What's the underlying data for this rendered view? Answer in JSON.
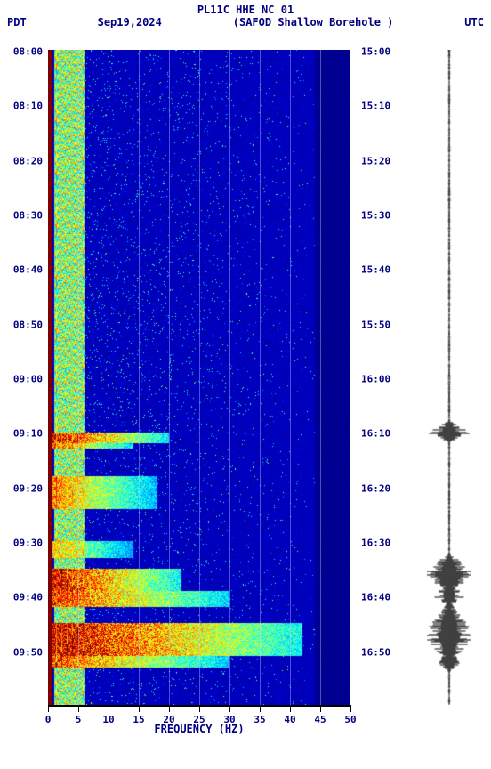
{
  "header": {
    "title": "PL11C HHE NC 01",
    "left_tz": "PDT",
    "date": "Sep19,2024",
    "station": "(SAFOD Shallow Borehole )",
    "right_tz": "UTC"
  },
  "x_axis": {
    "label": "FREQUENCY (HZ)",
    "min": 0,
    "max": 50,
    "ticks": [
      0,
      5,
      10,
      15,
      20,
      25,
      30,
      35,
      40,
      45,
      50
    ],
    "tick_color": "#000080",
    "label_fontsize": 12
  },
  "y_left": {
    "labels": [
      "08:00",
      "08:10",
      "08:20",
      "08:30",
      "08:40",
      "08:50",
      "09:00",
      "09:10",
      "09:20",
      "09:30",
      "09:40",
      "09:50"
    ]
  },
  "y_right": {
    "labels": [
      "15:00",
      "15:10",
      "15:20",
      "15:30",
      "15:40",
      "15:50",
      "16:00",
      "16:10",
      "16:20",
      "16:30",
      "16:40",
      "16:50"
    ]
  },
  "spectrogram": {
    "type": "heatmap",
    "colormap": [
      "#00007f",
      "#0000ff",
      "#007fff",
      "#00ffff",
      "#7fff7f",
      "#ffff00",
      "#ff7f00",
      "#ff0000",
      "#7f0000"
    ],
    "background_color": "#0000aa",
    "grid_color": "rgba(200,200,255,0.4)",
    "time_range_min": 0,
    "time_range_max": 120,
    "freq_range_min": 0,
    "freq_range_max": 50,
    "left_edge_band": {
      "freq_start": 0,
      "freq_end": 0.6,
      "color": "#7f0000",
      "intensity": 1.0
    },
    "persistent_band": {
      "freq_start": 1,
      "freq_end": 6,
      "base_intensity": 0.55
    },
    "events": [
      {
        "t_start": 70,
        "t_end": 72,
        "freq_end": 20,
        "intensity": 0.95
      },
      {
        "t_start": 72,
        "t_end": 73,
        "freq_end": 14,
        "intensity": 0.85
      },
      {
        "t_start": 78,
        "t_end": 84,
        "freq_end": 18,
        "intensity": 0.78
      },
      {
        "t_start": 90,
        "t_end": 93,
        "freq_end": 14,
        "intensity": 0.7
      },
      {
        "t_start": 95,
        "t_end": 99,
        "freq_end": 22,
        "intensity": 0.97
      },
      {
        "t_start": 99,
        "t_end": 102,
        "freq_end": 30,
        "intensity": 0.88
      },
      {
        "t_start": 105,
        "t_end": 111,
        "freq_end": 42,
        "intensity": 0.99
      },
      {
        "t_start": 111,
        "t_end": 113,
        "freq_end": 30,
        "intensity": 0.85
      }
    ],
    "speckle_density": 0.35
  },
  "waveform": {
    "color": "#000000",
    "baseline_amp": 0.04,
    "spikes": [
      {
        "t": 70,
        "amp": 0.85,
        "width": 2
      },
      {
        "t": 96,
        "amp": 0.95,
        "width": 4
      },
      {
        "t": 100,
        "amp": 0.7,
        "width": 2
      },
      {
        "t": 107,
        "amp": 1.0,
        "width": 6
      },
      {
        "t": 112,
        "amp": 0.5,
        "width": 2
      }
    ]
  },
  "colors": {
    "text": "#000080",
    "background": "#ffffff",
    "axis": "#000000"
  }
}
